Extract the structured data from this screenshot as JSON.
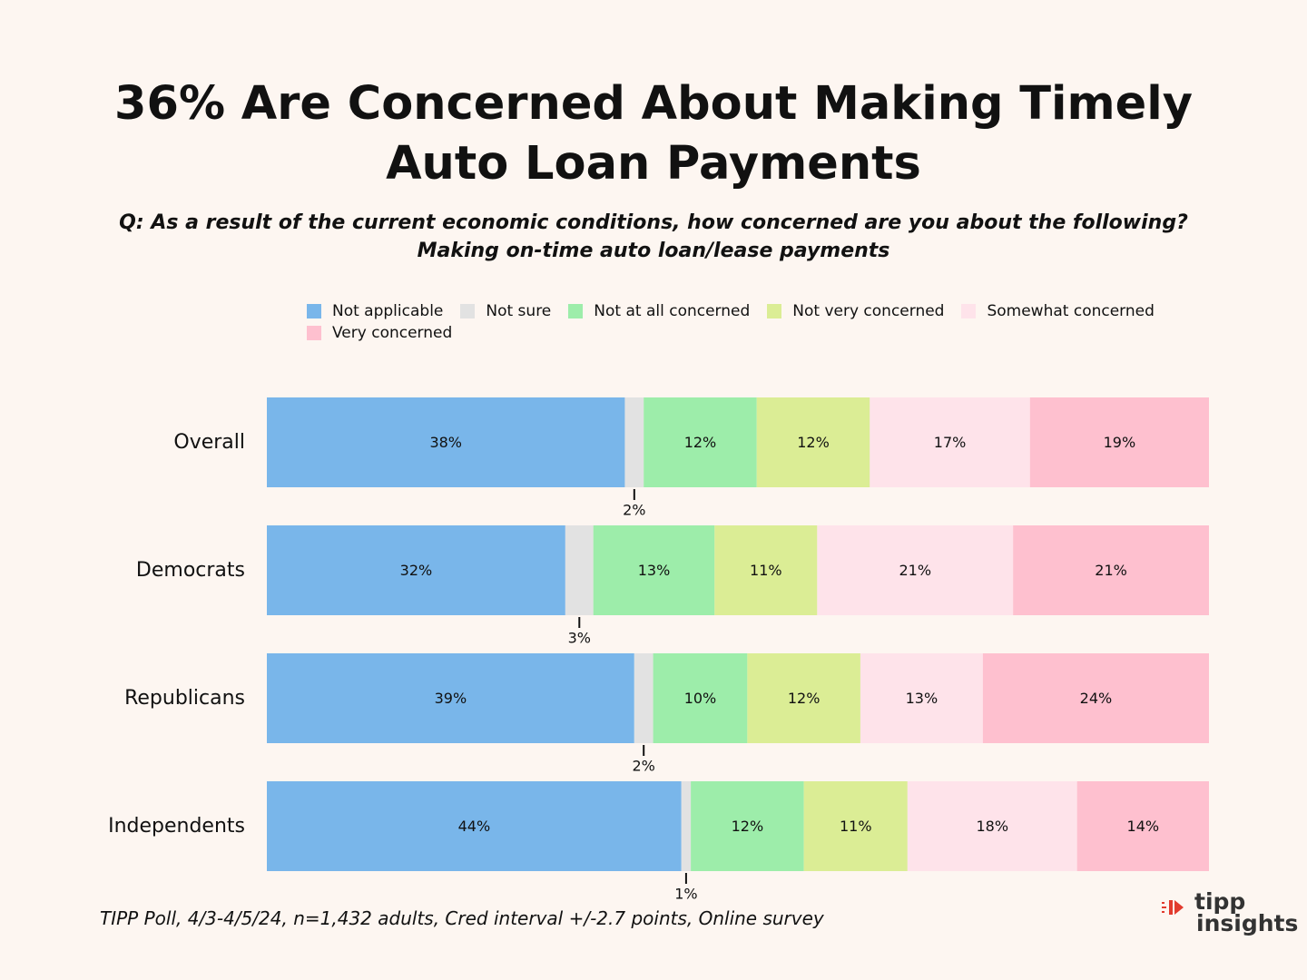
{
  "title": "36% Are Concerned About Making Timely Auto Loan Payments",
  "question": "Q: As a result of the current economic conditions, how concerned are you about the following?  Making on-time auto loan/lease payments",
  "source": "TIPP Poll, 4/3-4/5/24, n=1,432 adults, Cred interval +/-2.7 points, Online survey",
  "logo": {
    "line1": "tipp",
    "line2": "insights",
    "accent_color": "#e23b2e"
  },
  "chart_data": {
    "type": "bar",
    "orientation": "horizontal",
    "stacked": true,
    "normalized": true,
    "categories": [
      "Overall",
      "Democrats",
      "Republicans",
      "Independents"
    ],
    "series": [
      {
        "name": "Not applicable",
        "color": "#79b6ea",
        "values": [
          38,
          32,
          39,
          44
        ],
        "labels": [
          "38%",
          "32%",
          "39%",
          "44%"
        ]
      },
      {
        "name": "Not sure",
        "color": "#e2e2e2",
        "values": [
          2,
          3,
          2,
          1
        ],
        "labels": [
          "2%",
          "3%",
          "2%",
          "1%"
        ]
      },
      {
        "name": "Not at all concerned",
        "color": "#9dedaa",
        "values": [
          12,
          13,
          10,
          12
        ],
        "labels": [
          "12%",
          "13%",
          "10%",
          "12%"
        ]
      },
      {
        "name": "Not very concerned",
        "color": "#dbed95",
        "values": [
          12,
          11,
          12,
          11
        ],
        "labels": [
          "12%",
          "11%",
          "12%",
          "11%"
        ]
      },
      {
        "name": "Somewhat concerned",
        "color": "#fee3ea",
        "values": [
          17,
          21,
          13,
          18
        ],
        "labels": [
          "17%",
          "21%",
          "13%",
          "18%"
        ]
      },
      {
        "name": "Very concerned",
        "color": "#fec0cf",
        "values": [
          19,
          21,
          24,
          14
        ],
        "labels": [
          "19%",
          "21%",
          "24%",
          "14%"
        ]
      }
    ],
    "legend_position": "top",
    "grid": false
  }
}
